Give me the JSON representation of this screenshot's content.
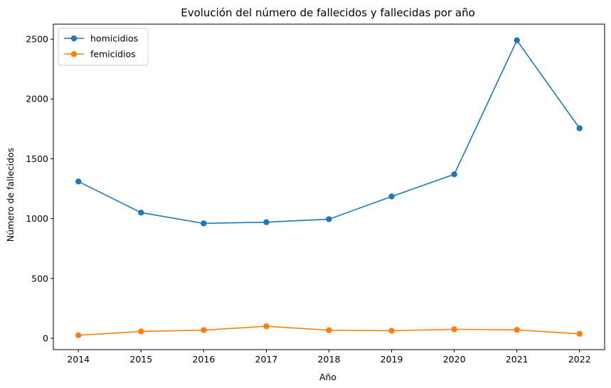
{
  "chart_data": {
    "type": "line",
    "title": "Evolución del número de fallecidos y fallecidas por año",
    "xlabel": "Año",
    "ylabel": "Número de fallecidos",
    "x": [
      2014,
      2015,
      2016,
      2017,
      2018,
      2019,
      2020,
      2021,
      2022
    ],
    "x_tick_labels": [
      "2014",
      "2015",
      "2016",
      "2017",
      "2018",
      "2019",
      "2020",
      "2021",
      "2022"
    ],
    "y_ticks": [
      0,
      500,
      1000,
      1500,
      2000,
      2500
    ],
    "y_tick_labels": [
      "0",
      "500",
      "1000",
      "1500",
      "2000",
      "2500"
    ],
    "ylim": [
      -95,
      2625
    ],
    "xlim": [
      2013.6,
      2022.4
    ],
    "grid": false,
    "legend_position": "upper-left",
    "series": [
      {
        "name": "homicidios",
        "color": "#1f77b4",
        "marker": "circle",
        "values": [
          1310,
          1050,
          960,
          970,
          995,
          1185,
          1370,
          2490,
          1755
        ]
      },
      {
        "name": "femicidios",
        "color": "#ff7f0e",
        "marker": "circle",
        "values": [
          25,
          57,
          68,
          100,
          67,
          63,
          75,
          70,
          37
        ]
      }
    ]
  }
}
